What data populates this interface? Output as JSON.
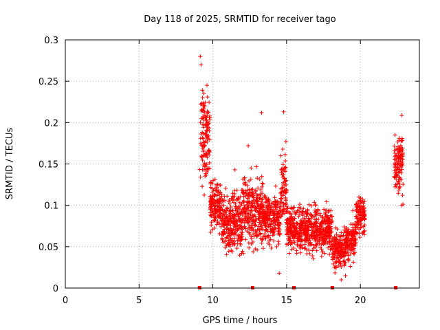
{
  "chart_data": {
    "type": "scatter",
    "title": "Day 118 of 2025, SRMTID for receiver tago",
    "xlabel": "GPS time / hours",
    "ylabel": "SRMTID / TECUs",
    "xlim": [
      0,
      24
    ],
    "ylim": [
      0,
      0.3
    ],
    "xticks": [
      0,
      5,
      10,
      15,
      20
    ],
    "yticks": [
      0,
      0.05,
      0.1,
      0.15,
      0.2,
      0.25,
      0.3
    ],
    "xtick_labels": [
      "0",
      "5",
      "10",
      "15",
      "20"
    ],
    "ytick_labels": [
      "0",
      "0.05",
      "0.1",
      "0.15",
      "0.2",
      "0.25",
      "0.3"
    ],
    "grid": true,
    "marker": "+",
    "series_color": "#ff0000",
    "zero_markers_x": [
      9.1,
      12.7,
      15.5,
      18.1,
      22.4
    ],
    "clusters": [
      {
        "x_start": 9.1,
        "x_end": 9.8,
        "y_min": 0.1,
        "y_max": 0.28
      },
      {
        "x_start": 9.8,
        "x_end": 10.6,
        "y_min": 0.06,
        "y_max": 0.15
      },
      {
        "x_start": 10.6,
        "x_end": 12.0,
        "y_min": 0.03,
        "y_max": 0.14
      },
      {
        "x_start": 12.0,
        "x_end": 13.4,
        "y_min": 0.03,
        "y_max": 0.17
      },
      {
        "x_start": 13.4,
        "x_end": 14.6,
        "y_min": 0.04,
        "y_max": 0.14
      },
      {
        "x_start": 14.6,
        "x_end": 15.0,
        "y_min": 0.05,
        "y_max": 0.21
      },
      {
        "x_start": 15.0,
        "x_end": 16.5,
        "y_min": 0.03,
        "y_max": 0.12
      },
      {
        "x_start": 16.5,
        "x_end": 18.1,
        "y_min": 0.03,
        "y_max": 0.12
      },
      {
        "x_start": 18.1,
        "x_end": 19.0,
        "y_min": 0.01,
        "y_max": 0.09
      },
      {
        "x_start": 19.0,
        "x_end": 19.7,
        "y_min": 0.02,
        "y_max": 0.1
      },
      {
        "x_start": 19.7,
        "x_end": 20.3,
        "y_min": 0.05,
        "y_max": 0.13
      },
      {
        "x_start": 22.3,
        "x_end": 22.9,
        "y_min": 0.1,
        "y_max": 0.21
      }
    ],
    "notable_points": [
      {
        "x": 9.15,
        "y": 0.28
      },
      {
        "x": 9.2,
        "y": 0.27
      },
      {
        "x": 9.6,
        "y": 0.245
      },
      {
        "x": 13.3,
        "y": 0.212
      },
      {
        "x": 14.8,
        "y": 0.213
      },
      {
        "x": 12.4,
        "y": 0.172
      },
      {
        "x": 11.5,
        "y": 0.143
      },
      {
        "x": 22.8,
        "y": 0.209
      },
      {
        "x": 22.8,
        "y": 0.1
      },
      {
        "x": 14.5,
        "y": 0.018
      },
      {
        "x": 18.7,
        "y": 0.01
      }
    ]
  }
}
